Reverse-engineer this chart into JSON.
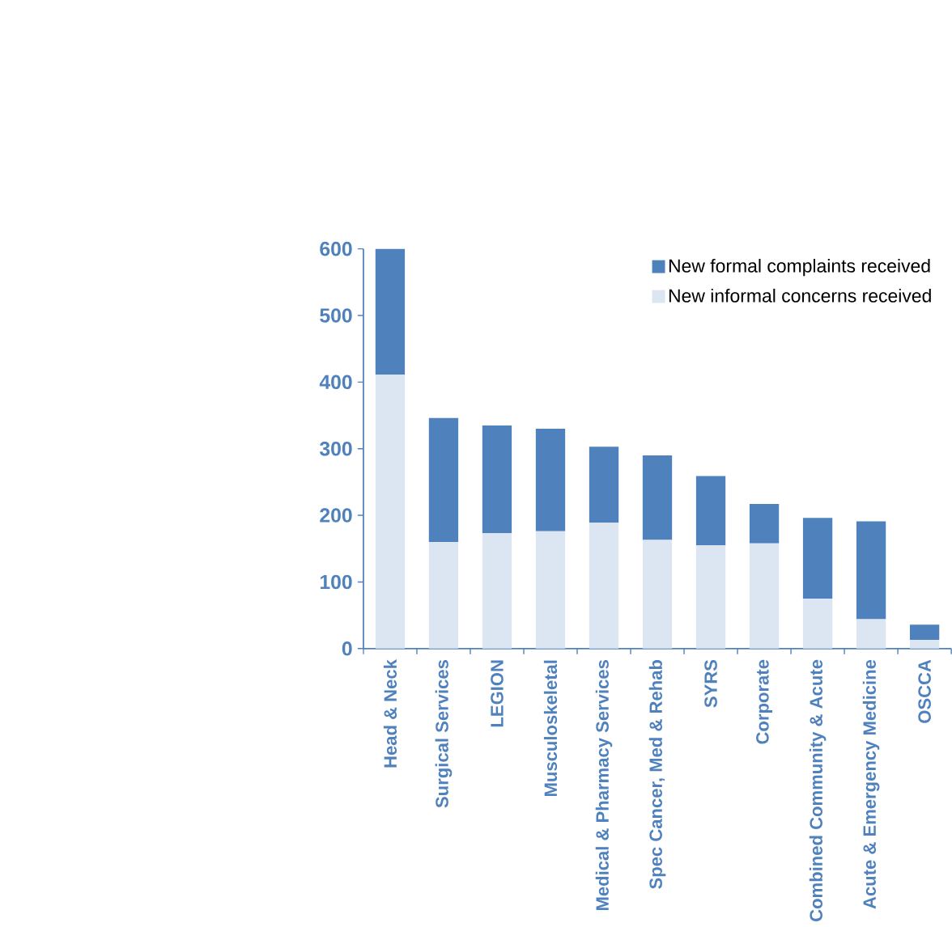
{
  "chart_data": {
    "type": "bar",
    "stacked": true,
    "categories": [
      "Head & Neck",
      "Surgical Services",
      "LEGION",
      "Musculoskeletal",
      "Medical & Pharmacy Services",
      "Spec Cancer, Med & Rehab",
      "SYRS",
      "Corporate",
      "Combined Community & Acute",
      "Acute & Emergency Medicine",
      "OSCCA"
    ],
    "series": [
      {
        "name": "New informal concerns received",
        "color": "#dce6f2",
        "values": [
          411,
          160,
          173,
          176,
          189,
          163,
          155,
          158,
          75,
          44,
          13
        ]
      },
      {
        "name": "New formal complaints received",
        "color": "#4f81bd",
        "values": [
          189,
          186,
          162,
          154,
          114,
          127,
          104,
          59,
          121,
          147,
          23
        ]
      }
    ],
    "ylim": [
      0,
      600
    ],
    "yticks": [
      0,
      100,
      200,
      300,
      400,
      500,
      600
    ],
    "legend": "top right",
    "grid": false
  }
}
